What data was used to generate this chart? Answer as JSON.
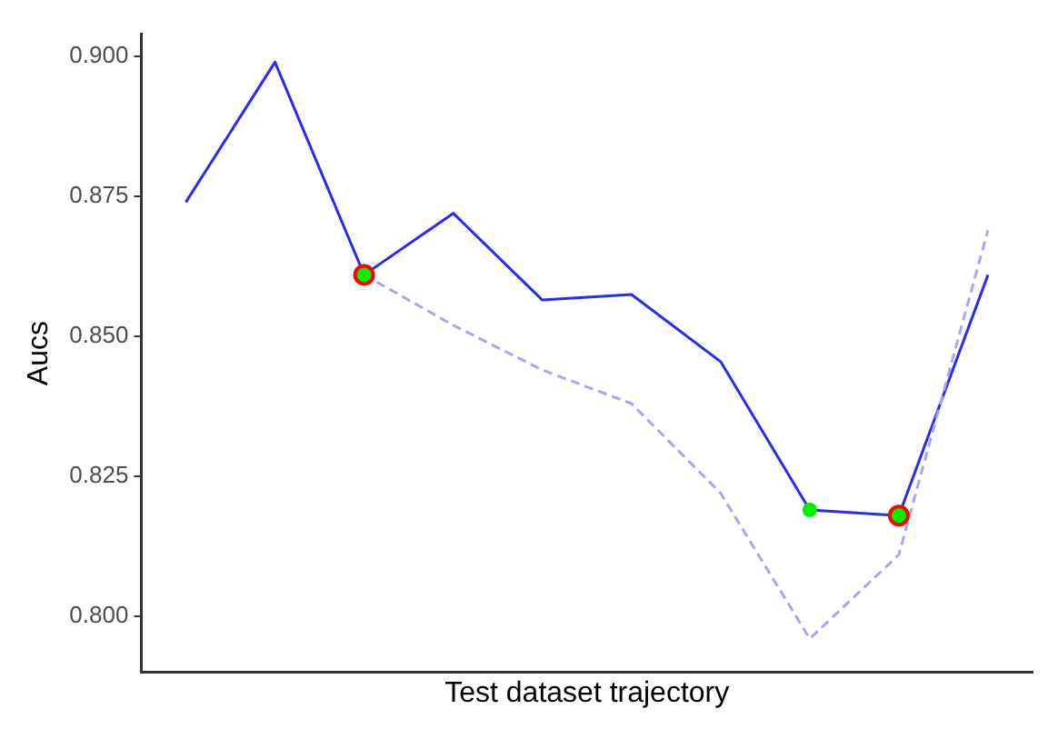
{
  "chart_data": {
    "type": "line",
    "xlabel": "Test dataset trajectory",
    "ylabel": "Aucs",
    "categories": [
      null,
      null,
      null,
      null,
      null,
      null,
      null,
      null,
      null,
      null
    ],
    "ylim": [
      0.79,
      0.904
    ],
    "yticks": [
      {
        "value": 0.8,
        "label": "0.800"
      },
      {
        "value": 0.825,
        "label": "0.825"
      },
      {
        "value": 0.85,
        "label": "0.850"
      },
      {
        "value": 0.875,
        "label": "0.875"
      },
      {
        "value": 0.9,
        "label": "0.900"
      }
    ],
    "tick_labels": "y",
    "grid": false,
    "legend": false,
    "marker": "none",
    "series": [
      {
        "type": "line",
        "color": "#2a2af2",
        "line_style": "solid",
        "values": [
          0.874,
          0.899,
          0.861,
          0.872,
          0.8565,
          0.8575,
          0.8455,
          0.819,
          0.818,
          0.861
        ]
      },
      {
        "type": "line",
        "color": "#a9a5f5",
        "line_style": "dashed",
        "values": [
          null,
          null,
          0.861,
          0.852,
          0.844,
          0.838,
          0.822,
          0.796,
          0.811,
          0.869
        ]
      },
      {
        "type": "scatter",
        "color": "#ff0000",
        "marker": "circle",
        "values": [
          null,
          null,
          0.861,
          null,
          null,
          null,
          null,
          null,
          0.818,
          null
        ]
      },
      {
        "type": "scatter",
        "color": "#00ee00",
        "marker": "circle",
        "values": [
          null,
          null,
          0.861,
          null,
          null,
          null,
          null,
          0.819,
          0.818,
          null
        ]
      }
    ]
  }
}
